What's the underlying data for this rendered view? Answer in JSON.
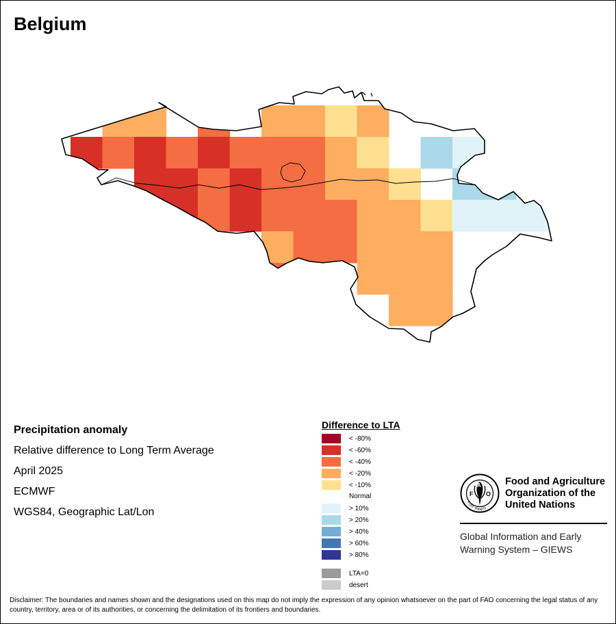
{
  "map": {
    "title": "Belgium",
    "grid": [
      {
        "r": 0,
        "c": 1,
        "cls": "lt_20"
      },
      {
        "r": 0,
        "c": 2,
        "cls": "lt_20"
      },
      {
        "r": 0,
        "c": 4,
        "cls": "lt_40"
      },
      {
        "r": 0,
        "c": 6,
        "cls": "lt_20"
      },
      {
        "r": 0,
        "c": 7,
        "cls": "lt_20"
      },
      {
        "r": 0,
        "c": 8,
        "cls": "lt_10"
      },
      {
        "r": 0,
        "c": 9,
        "cls": "lt_20"
      },
      {
        "r": 1,
        "c": 0,
        "cls": "lt_60"
      },
      {
        "r": 1,
        "c": 1,
        "cls": "lt_40"
      },
      {
        "r": 1,
        "c": 2,
        "cls": "lt_60"
      },
      {
        "r": 1,
        "c": 3,
        "cls": "lt_40"
      },
      {
        "r": 1,
        "c": 4,
        "cls": "lt_60"
      },
      {
        "r": 1,
        "c": 5,
        "cls": "lt_40"
      },
      {
        "r": 1,
        "c": 6,
        "cls": "lt_40"
      },
      {
        "r": 1,
        "c": 7,
        "cls": "lt_40"
      },
      {
        "r": 1,
        "c": 8,
        "cls": "lt_20"
      },
      {
        "r": 1,
        "c": 9,
        "cls": "lt_10"
      },
      {
        "r": 1,
        "c": 11,
        "cls": "gt_20"
      },
      {
        "r": 1,
        "c": 12,
        "cls": "gt_10"
      },
      {
        "r": 2,
        "c": 2,
        "cls": "lt_60"
      },
      {
        "r": 2,
        "c": 3,
        "cls": "lt_60"
      },
      {
        "r": 2,
        "c": 4,
        "cls": "lt_40"
      },
      {
        "r": 2,
        "c": 5,
        "cls": "lt_60"
      },
      {
        "r": 2,
        "c": 6,
        "cls": "lt_40"
      },
      {
        "r": 2,
        "c": 7,
        "cls": "lt_40"
      },
      {
        "r": 2,
        "c": 8,
        "cls": "lt_20"
      },
      {
        "r": 2,
        "c": 9,
        "cls": "lt_20"
      },
      {
        "r": 2,
        "c": 10,
        "cls": "lt_10"
      },
      {
        "r": 2,
        "c": 12,
        "cls": "gt_20"
      },
      {
        "r": 2,
        "c": 13,
        "cls": "gt_20"
      },
      {
        "r": 3,
        "c": 3,
        "cls": "lt_60"
      },
      {
        "r": 3,
        "c": 4,
        "cls": "lt_40"
      },
      {
        "r": 3,
        "c": 5,
        "cls": "lt_60"
      },
      {
        "r": 3,
        "c": 6,
        "cls": "lt_40"
      },
      {
        "r": 3,
        "c": 7,
        "cls": "lt_40"
      },
      {
        "r": 3,
        "c": 8,
        "cls": "lt_40"
      },
      {
        "r": 3,
        "c": 9,
        "cls": "lt_20"
      },
      {
        "r": 3,
        "c": 10,
        "cls": "lt_20"
      },
      {
        "r": 3,
        "c": 11,
        "cls": "lt_10"
      },
      {
        "r": 3,
        "c": 12,
        "cls": "gt_10"
      },
      {
        "r": 3,
        "c": 13,
        "cls": "gt_10"
      },
      {
        "r": 3,
        "c": 14,
        "cls": "gt_10"
      },
      {
        "r": 4,
        "c": 6,
        "cls": "lt_20"
      },
      {
        "r": 4,
        "c": 7,
        "cls": "lt_40"
      },
      {
        "r": 4,
        "c": 8,
        "cls": "lt_40"
      },
      {
        "r": 4,
        "c": 9,
        "cls": "lt_20"
      },
      {
        "r": 4,
        "c": 10,
        "cls": "lt_20"
      },
      {
        "r": 4,
        "c": 11,
        "cls": "lt_20"
      },
      {
        "r": 5,
        "c": 6,
        "cls": "lt_40"
      },
      {
        "r": 5,
        "c": 7,
        "cls": "lt_20"
      },
      {
        "r": 5,
        "c": 9,
        "cls": "lt_20"
      },
      {
        "r": 5,
        "c": 10,
        "cls": "lt_20"
      },
      {
        "r": 5,
        "c": 11,
        "cls": "lt_20"
      },
      {
        "r": 6,
        "c": 10,
        "cls": "lt_20"
      },
      {
        "r": 6,
        "c": 11,
        "cls": "lt_20"
      }
    ]
  },
  "metadata": {
    "title": "Precipitation anomaly",
    "line1": "Relative difference to Long Term Average",
    "line2": "April 2025",
    "line3": "ECMWF",
    "line4": "WGS84, Geographic Lat/Lon"
  },
  "legend": {
    "title": "Difference to LTA",
    "items": [
      {
        "key": "lt_80",
        "label": "< -80%",
        "color": "#a50026"
      },
      {
        "key": "lt_60",
        "label": "< -60%",
        "color": "#d73027"
      },
      {
        "key": "lt_40",
        "label": "< -40%",
        "color": "#f46d43"
      },
      {
        "key": "lt_20",
        "label": "< -20%",
        "color": "#fdae61"
      },
      {
        "key": "lt_10",
        "label": "< -10%",
        "color": "#fee090"
      }
    ],
    "normal_label": "Normal",
    "items_pos": [
      {
        "key": "gt_10",
        "label": "> 10%",
        "color": "#e0f3f8"
      },
      {
        "key": "gt_20",
        "label": "> 20%",
        "color": "#abd9e9"
      },
      {
        "key": "gt_40",
        "label": "> 40%",
        "color": "#74add1"
      },
      {
        "key": "gt_60",
        "label": "> 60%",
        "color": "#4575b4"
      },
      {
        "key": "gt_80",
        "label": "> 80%",
        "color": "#313695"
      }
    ],
    "extra": [
      {
        "key": "lta0",
        "label": "LTA=0",
        "color": "#9b9b9b"
      },
      {
        "key": "desert",
        "label": "desert",
        "color": "#cccccc"
      }
    ]
  },
  "organization": {
    "name_line1": "Food and Agriculture",
    "name_line2": "Organization of the",
    "name_line3": "United Nations",
    "giews_line1": "Global Information and Early",
    "giews_line2": "Warning System – GIEWS",
    "logo_text": "FAO",
    "logo_motto": "FIAT PANIS"
  },
  "disclaimer": "Disclaimer: The boundaries and names shown and the designations used on this map do not imply the expression of any opinion whatsoever on the part of FAO concerning the legal status of any country, territory, area or of its authorities, or concerning the delimitation of its frontiers and boundaries."
}
